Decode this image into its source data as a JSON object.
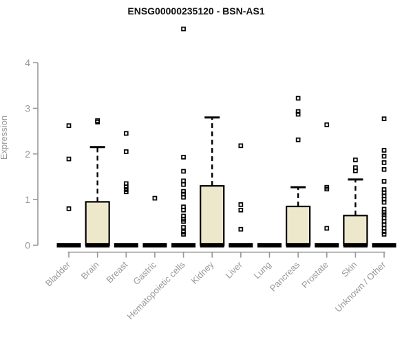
{
  "chart_data": {
    "type": "boxplot",
    "title": "ENSG00000235120 - BSN-AS1",
    "ylabel": "Expression",
    "xlabel": "",
    "ylim": [
      0,
      4
    ],
    "yticks": [
      0,
      1,
      2,
      3,
      4
    ],
    "grid": false,
    "legend": null,
    "categories": [
      "Bladder",
      "Brain",
      "Breast",
      "Gastric",
      "Hematopoietic cells",
      "Kidney",
      "Liver",
      "Lung",
      "Pancreas",
      "Prostate",
      "Skin",
      "Unknown / Other"
    ],
    "series": [
      {
        "category": "Bladder",
        "q1": 0,
        "median": 0,
        "q3": 0,
        "whisker_low": 0,
        "whisker_high": 0,
        "outliers": [
          2.62,
          1.89,
          0.8
        ]
      },
      {
        "category": "Brain",
        "q1": 0,
        "median": 0,
        "q3": 0.95,
        "whisker_low": 0,
        "whisker_high": 2.15,
        "outliers": [
          2.73,
          2.7
        ]
      },
      {
        "category": "Breast",
        "q1": 0,
        "median": 0,
        "q3": 0,
        "whisker_low": 0,
        "whisker_high": 0,
        "outliers": [
          2.45,
          2.05,
          1.35,
          1.28,
          1.22,
          1.17
        ]
      },
      {
        "category": "Gastric",
        "q1": 0,
        "median": 0,
        "q3": 0,
        "whisker_low": 0,
        "whisker_high": 0,
        "outliers": [
          1.03
        ]
      },
      {
        "category": "Hematopoietic cells",
        "q1": 0,
        "median": 0,
        "q3": 0,
        "whisker_low": 0,
        "whisker_high": 0,
        "outliers": [
          4.74,
          1.93,
          1.62,
          1.41,
          1.33,
          1.18,
          1.12,
          1.05,
          0.84,
          0.77,
          0.64,
          0.57,
          0.52,
          0.39,
          0.29,
          0.24
        ]
      },
      {
        "category": "Kidney",
        "q1": 0,
        "median": 0,
        "q3": 1.3,
        "whisker_low": 0,
        "whisker_high": 2.8,
        "outliers": []
      },
      {
        "category": "Liver",
        "q1": 0,
        "median": 0,
        "q3": 0,
        "whisker_low": 0,
        "whisker_high": 0,
        "outliers": [
          2.18,
          0.89,
          0.77,
          0.35
        ]
      },
      {
        "category": "Lung",
        "q1": 0,
        "median": 0,
        "q3": 0,
        "whisker_low": 0,
        "whisker_high": 0,
        "outliers": []
      },
      {
        "category": "Pancreas",
        "q1": 0,
        "median": 0,
        "q3": 0.85,
        "whisker_low": 0,
        "whisker_high": 1.27,
        "outliers": [
          3.22,
          2.93,
          2.87,
          2.31
        ]
      },
      {
        "category": "Prostate",
        "q1": 0,
        "median": 0,
        "q3": 0,
        "whisker_low": 0,
        "whisker_high": 0,
        "outliers": [
          2.64,
          1.27,
          1.23,
          0.37
        ]
      },
      {
        "category": "Skin",
        "q1": 0,
        "median": 0,
        "q3": 0.65,
        "whisker_low": 0,
        "whisker_high": 1.44,
        "outliers": [
          1.87,
          1.7,
          1.63
        ]
      },
      {
        "category": "Unknown / Other",
        "q1": 0,
        "median": 0,
        "q3": 0,
        "whisker_low": 0,
        "whisker_high": 0,
        "outliers": [
          2.77,
          2.08,
          1.95,
          1.81,
          1.66,
          1.4,
          1.22,
          1.15,
          1.08,
          1.01,
          0.94,
          0.79,
          0.72,
          0.67,
          0.6,
          0.52,
          0.45,
          0.37,
          0.3,
          0.24
        ]
      }
    ],
    "colors": {
      "box_fill": "#ede7cc",
      "box_stroke": "#000000",
      "median": "#000000",
      "whisker": "#000000",
      "outlier_stroke": "#000000",
      "axis": "#979797",
      "tick_label": "#999999",
      "title": "#111111",
      "background": "#ffffff"
    }
  }
}
